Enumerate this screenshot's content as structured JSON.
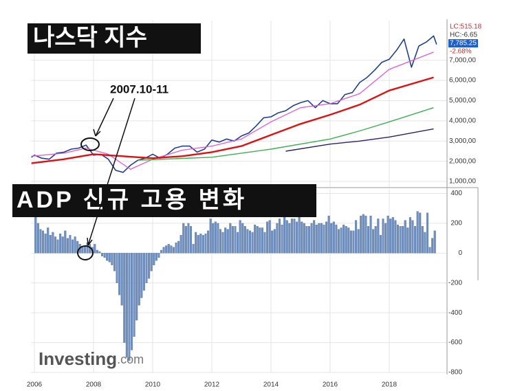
{
  "annotation": "2007.10-11",
  "watermark": {
    "brand": "Investing",
    "suffix": ".com"
  },
  "info_labels": [
    "LC:515.18",
    "HC:-6.65",
    "7,785.25",
    "-2.68%"
  ],
  "chart_data": [
    {
      "type": "line",
      "title": "나스닥 지수",
      "xlim": [
        2005.884,
        2019.953
      ],
      "ylim": [
        730,
        8960
      ],
      "yticks": [
        {
          "value": 1000,
          "label": "1,000,00"
        },
        {
          "value": 2000,
          "label": "2,000,00"
        },
        {
          "value": 3000,
          "label": "3,000,00"
        },
        {
          "value": 4000,
          "label": "4,000,00"
        },
        {
          "value": 5000,
          "label": "5,000,00"
        },
        {
          "value": 6000,
          "label": "6,000,00"
        },
        {
          "value": 7000,
          "label": "7,000,00"
        }
      ],
      "grid": true,
      "series": [
        {
          "color": "#1f3f8f",
          "width": 1.6,
          "x": [
            2005.9,
            2006,
            2006.25,
            2006.5,
            2006.75,
            2007,
            2007.25,
            2007.5,
            2007.75,
            2008,
            2008.25,
            2008.5,
            2008.75,
            2009,
            2009.25,
            2009.5,
            2009.75,
            2010,
            2010.25,
            2010.5,
            2010.75,
            2011,
            2011.25,
            2011.5,
            2011.75,
            2012,
            2012.25,
            2012.5,
            2012.75,
            2013,
            2013.25,
            2013.5,
            2013.75,
            2014,
            2014.25,
            2014.5,
            2014.75,
            2015,
            2015.25,
            2015.5,
            2015.75,
            2016,
            2016.25,
            2016.5,
            2016.75,
            2017,
            2017.25,
            2017.5,
            2017.75,
            2018,
            2018.25,
            2018.5,
            2018.75,
            2019,
            2019.25,
            2019.5,
            2019.6
          ],
          "values": [
            2200,
            2300,
            2150,
            2100,
            2400,
            2450,
            2600,
            2650,
            2800,
            2300,
            2350,
            2100,
            1550,
            1450,
            1800,
            2050,
            2150,
            2350,
            2150,
            2350,
            2650,
            2750,
            2750,
            2450,
            2600,
            3050,
            2950,
            3100,
            3000,
            3250,
            3400,
            3750,
            4150,
            4200,
            4400,
            4500,
            4750,
            4900,
            5000,
            4650,
            5000,
            4850,
            4850,
            5300,
            5400,
            5900,
            6150,
            6500,
            6900,
            7050,
            7500,
            8050,
            6650,
            7700,
            7900,
            8200,
            7785
          ]
        },
        {
          "color": "#e05ad0",
          "width": 1.3,
          "x": [
            2005.9,
            2007,
            2007.75,
            2008.5,
            2009.25,
            2010,
            2011,
            2012,
            2013,
            2014,
            2015,
            2016,
            2017,
            2018,
            2019.5
          ],
          "values": [
            2250,
            2400,
            2650,
            2350,
            1600,
            2100,
            2550,
            2750,
            3100,
            3950,
            4650,
            4850,
            5350,
            6550,
            7400
          ]
        },
        {
          "color": "#e01010",
          "width": 2.4,
          "x": [
            2005.9,
            2007,
            2008,
            2009.5,
            2010,
            2011,
            2012,
            2013,
            2014,
            2015,
            2016,
            2017,
            2018,
            2019.5
          ],
          "values": [
            1900,
            2100,
            2350,
            2200,
            2150,
            2250,
            2450,
            2750,
            3300,
            3850,
            4300,
            4800,
            5500,
            6150
          ]
        },
        {
          "color": "#3cb050",
          "width": 1.4,
          "x": [
            2009.5,
            2012,
            2014,
            2016,
            2017,
            2018,
            2019.5
          ],
          "values": [
            2050,
            2200,
            2600,
            3100,
            3500,
            3950,
            4650
          ]
        },
        {
          "color": "#2a1f6e",
          "width": 1.4,
          "x": [
            2014.5,
            2016,
            2017,
            2018,
            2019.5
          ],
          "values": [
            2500,
            2850,
            3000,
            3200,
            3600
          ]
        }
      ]
    },
    {
      "type": "bar",
      "title": "ADP 신규 고용 변화",
      "color": "#6f8fbf",
      "xlim": [
        2006,
        2019.583
      ],
      "ylim": [
        -800,
        430
      ],
      "xticks": [
        2006,
        2008,
        2010,
        2012,
        2014,
        2016,
        2018
      ],
      "yticks": [
        400,
        200,
        0,
        -200,
        -400,
        -600,
        -800
      ],
      "grid": true,
      "categories": [
        null,
        null,
        null,
        null,
        null,
        null,
        null,
        null,
        null,
        null,
        null,
        null,
        null,
        null,
        null,
        null,
        null,
        null,
        null,
        null,
        null,
        null,
        null,
        null,
        null,
        null,
        null,
        null,
        null,
        null,
        null,
        null,
        null,
        null,
        null,
        null,
        null,
        null,
        null,
        null,
        null,
        null,
        null,
        null,
        null,
        null,
        null,
        null,
        null,
        null,
        null,
        null,
        null,
        null,
        null,
        null,
        null,
        null,
        null,
        null,
        null,
        null,
        null,
        null,
        null,
        null,
        null,
        null,
        null,
        null,
        null,
        null,
        null,
        null,
        null,
        null,
        null,
        null,
        null,
        null,
        null,
        null,
        null,
        null,
        null,
        null,
        null,
        null,
        null,
        null,
        null,
        null,
        null,
        null,
        null,
        null,
        null,
        null,
        null,
        null,
        null,
        null,
        null,
        null,
        null,
        null,
        null,
        null,
        null,
        null,
        null,
        null,
        null,
        null,
        null,
        null,
        null,
        null,
        null,
        null,
        null,
        null,
        null,
        null,
        null,
        null,
        null,
        null,
        null,
        null,
        null,
        null,
        null,
        null,
        null,
        null,
        null,
        null,
        null,
        null,
        null,
        null,
        null,
        null,
        null,
        null,
        null,
        null,
        null,
        null,
        null,
        null,
        null,
        null,
        null,
        null,
        null,
        null,
        null,
        null,
        null,
        null,
        null
      ],
      "values": [
        380,
        200,
        160,
        150,
        130,
        170,
        120,
        140,
        110,
        90,
        130,
        110,
        150,
        100,
        120,
        90,
        110,
        80,
        60,
        40,
        50,
        70,
        60,
        40,
        60,
        20,
        10,
        -20,
        -30,
        -50,
        -60,
        -80,
        -120,
        -200,
        -280,
        -350,
        -600,
        -700,
        -720,
        -650,
        -560,
        -450,
        -350,
        -300,
        -250,
        -200,
        -170,
        -120,
        -80,
        -50,
        -30,
        20,
        40,
        50,
        60,
        50,
        40,
        70,
        80,
        120,
        200,
        180,
        200,
        180,
        60,
        140,
        120,
        130,
        120,
        130,
        150,
        230,
        200,
        210,
        200,
        160,
        140,
        170,
        160,
        200,
        180,
        180,
        140,
        220,
        200,
        180,
        160,
        150,
        140,
        190,
        180,
        170,
        170,
        140,
        210,
        220,
        150,
        160,
        200,
        230,
        190,
        250,
        220,
        200,
        230,
        230,
        210,
        240,
        210,
        200,
        180,
        180,
        200,
        220,
        190,
        200,
        200,
        190,
        210,
        250,
        200,
        210,
        190,
        160,
        170,
        190,
        180,
        170,
        150,
        150,
        220,
        160,
        250,
        260,
        250,
        180,
        250,
        160,
        180,
        230,
        120,
        230,
        200,
        250,
        230,
        240,
        220,
        190,
        180,
        180,
        220,
        170,
        240,
        220,
        180,
        280,
        270,
        180,
        140,
        270,
        40,
        100,
        150
      ]
    }
  ]
}
